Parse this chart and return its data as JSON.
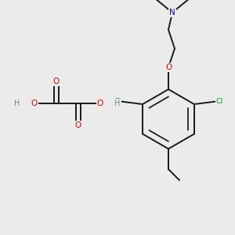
{
  "background_color": "#ebebeb",
  "bond_color": "#1a1a1a",
  "bond_width": 1.4,
  "atom_colors": {
    "O": "#ee0000",
    "N": "#0000ee",
    "Cl": "#00aa00",
    "C": "#1a1a1a",
    "H": "#6a8f8f"
  },
  "font_size_atom": 7.5,
  "font_size_h": 7.0
}
